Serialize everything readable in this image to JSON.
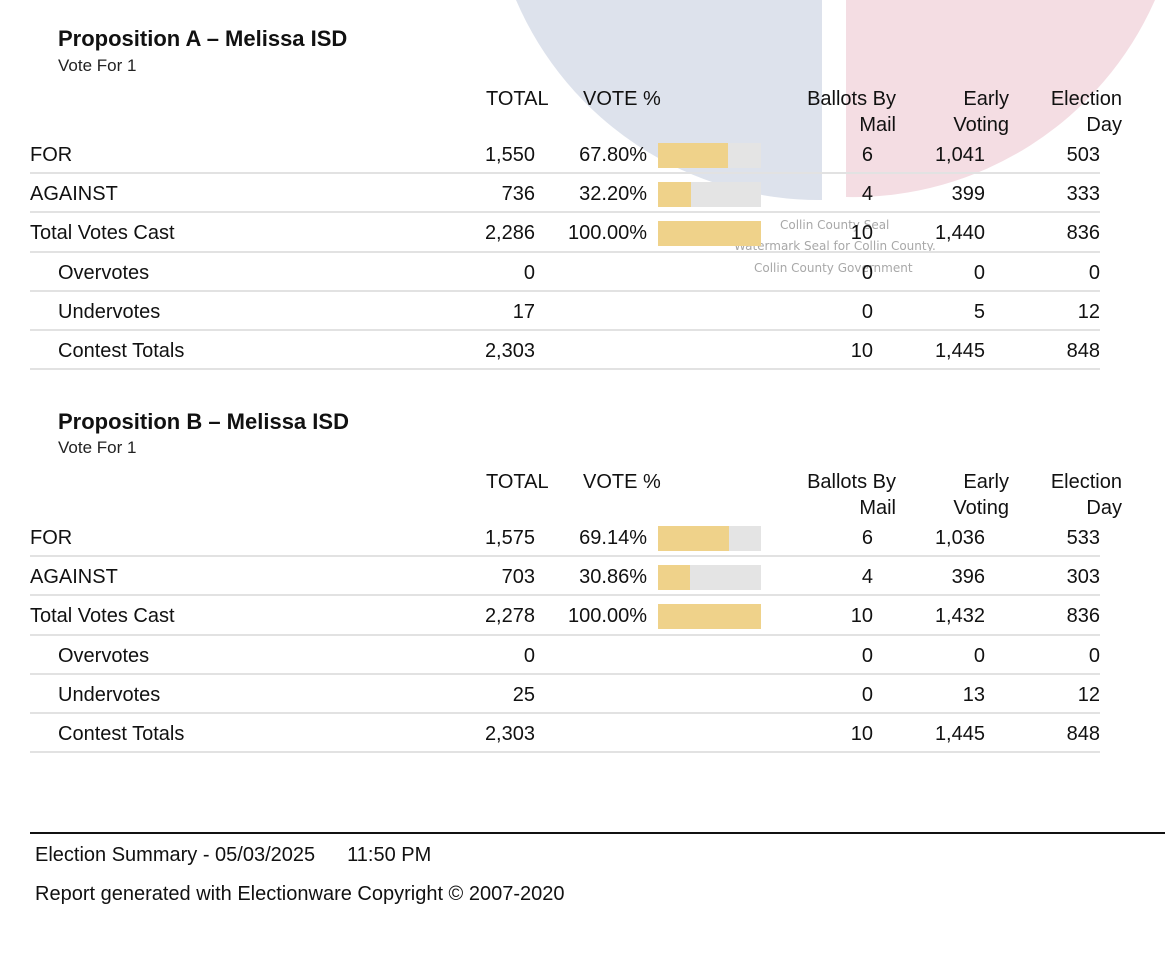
{
  "watermark": {
    "line1": "Collin County Seal",
    "line2": "Watermark Seal for Collin County.",
    "line3": "Collin County Government",
    "colors": {
      "blue": "#dde2ec",
      "pink": "#f4dde3"
    }
  },
  "columns": {
    "total": "TOTAL",
    "vote_pct": "VOTE %",
    "mail_1": "Ballots By",
    "mail_2": "Mail",
    "early_1": "Early",
    "early_2": "Voting",
    "eday_1": "Election",
    "eday_2": "Day"
  },
  "contests": [
    {
      "title": "Proposition A – Melissa ISD",
      "subtitle": "Vote For 1",
      "rows": [
        {
          "label": "FOR",
          "total": "1,550",
          "pct": "67.80%",
          "share": 0.678,
          "mail": "6",
          "early": "1,041",
          "eday": "503",
          "indent": false
        },
        {
          "label": "AGAINST",
          "total": "736",
          "pct": "32.20%",
          "share": 0.322,
          "mail": "4",
          "early": "399",
          "eday": "333",
          "indent": false
        },
        {
          "label": "Total Votes Cast",
          "total": "2,286",
          "pct": "100.00%",
          "share": 1.0,
          "mail": "10",
          "early": "1,440",
          "eday": "836",
          "indent": false
        },
        {
          "label": "Overvotes",
          "total": "0",
          "pct": "",
          "share": null,
          "mail": "0",
          "early": "0",
          "eday": "0",
          "indent": true
        },
        {
          "label": "Undervotes",
          "total": "17",
          "pct": "",
          "share": null,
          "mail": "0",
          "early": "5",
          "eday": "12",
          "indent": true
        },
        {
          "label": "Contest Totals",
          "total": "2,303",
          "pct": "",
          "share": null,
          "mail": "10",
          "early": "1,445",
          "eday": "848",
          "indent": true
        }
      ]
    },
    {
      "title": "Proposition B – Melissa ISD",
      "subtitle": "Vote For 1",
      "rows": [
        {
          "label": "FOR",
          "total": "1,575",
          "pct": "69.14%",
          "share": 0.6914,
          "mail": "6",
          "early": "1,036",
          "eday": "533",
          "indent": false
        },
        {
          "label": "AGAINST",
          "total": "703",
          "pct": "30.86%",
          "share": 0.3086,
          "mail": "4",
          "early": "396",
          "eday": "303",
          "indent": false
        },
        {
          "label": "Total Votes Cast",
          "total": "2,278",
          "pct": "100.00%",
          "share": 1.0,
          "mail": "10",
          "early": "1,432",
          "eday": "836",
          "indent": false
        },
        {
          "label": "Overvotes",
          "total": "0",
          "pct": "",
          "share": null,
          "mail": "0",
          "early": "0",
          "eday": "0",
          "indent": true
        },
        {
          "label": "Undervotes",
          "total": "25",
          "pct": "",
          "share": null,
          "mail": "0",
          "early": "13",
          "eday": "12",
          "indent": true
        },
        {
          "label": "Contest Totals",
          "total": "2,303",
          "pct": "",
          "share": null,
          "mail": "10",
          "early": "1,445",
          "eday": "848",
          "indent": true
        }
      ]
    }
  ],
  "footer": {
    "summary": "Election Summary - 05/03/2025",
    "time": "11:50 PM",
    "report": "Report generated with Electionware Copyright © 2007-2020"
  }
}
